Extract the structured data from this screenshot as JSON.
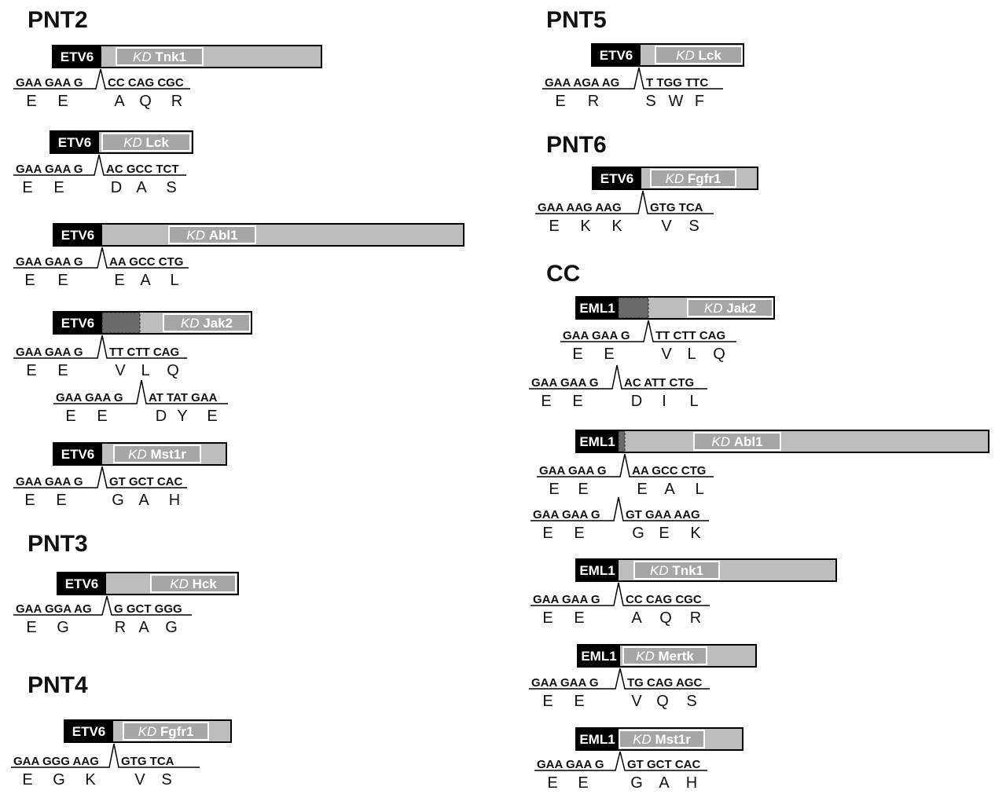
{
  "sections": [
    {
      "title": "PNT2",
      "constructs": [
        {
          "tag": "ETV6",
          "kd": "Tnk1",
          "rows": [
            {
              "left": "GAA GAA G",
              "right": "CC CAG CGC",
              "left_aa": [
                "E",
                "E"
              ],
              "right_aa": [
                "A",
                "Q",
                "R"
              ]
            }
          ]
        },
        {
          "tag": "ETV6",
          "kd": "Lck",
          "rows": [
            {
              "left": "GAA GAA G",
              "right": "AC GCC TCT",
              "left_aa": [
                "E",
                "E"
              ],
              "right_aa": [
                "D",
                "A",
                "S"
              ]
            }
          ]
        },
        {
          "tag": "ETV6",
          "kd": "Abl1",
          "rows": [
            {
              "left": "GAA GAA G",
              "right": "AA GCC CTG",
              "left_aa": [
                "E",
                "E"
              ],
              "right_aa": [
                "E",
                "A",
                "L"
              ]
            }
          ]
        },
        {
          "tag": "ETV6",
          "kd": "Jak2",
          "rows": [
            {
              "left": "GAA GAA G",
              "right": "TT CTT CAG",
              "left_aa": [
                "E",
                "E"
              ],
              "right_aa": [
                "V",
                "L",
                "Q"
              ]
            },
            {
              "left": "GAA GAA G",
              "right": "AT TAT GAA",
              "left_aa": [
                "E",
                "E"
              ],
              "right_aa": [
                "D",
                "Y",
                "E"
              ]
            }
          ]
        },
        {
          "tag": "ETV6",
          "kd": "Mst1r",
          "rows": [
            {
              "left": "GAA GAA G",
              "right": "GT GCT CAC",
              "left_aa": [
                "E",
                "E"
              ],
              "right_aa": [
                "G",
                "A",
                "H"
              ]
            }
          ]
        }
      ]
    },
    {
      "title": "PNT3",
      "constructs": [
        {
          "tag": "ETV6",
          "kd": "Hck",
          "rows": [
            {
              "left": "GAA GGA AG",
              "right": "G GCT GGG",
              "left_aa": [
                "E",
                "G"
              ],
              "right_aa": [
                "R",
                "A",
                "G"
              ]
            }
          ]
        }
      ]
    },
    {
      "title": "PNT4",
      "constructs": [
        {
          "tag": "ETV6",
          "kd": "Fgfr1",
          "rows": [
            {
              "left": "GAA GGG AAG",
              "right": "GTG TCA",
              "left_aa": [
                "E",
                "G",
                "K"
              ],
              "right_aa": [
                "V",
                "S"
              ]
            }
          ]
        }
      ]
    },
    {
      "title": "PNT5",
      "constructs": [
        {
          "tag": "ETV6",
          "kd": "Lck",
          "rows": [
            {
              "left": "GAA AGA AG",
              "right": "T TGG TTC",
              "left_aa": [
                "E",
                "R"
              ],
              "right_aa": [
                "S",
                "W",
                "F"
              ]
            }
          ]
        }
      ]
    },
    {
      "title": "PNT6",
      "constructs": [
        {
          "tag": "ETV6",
          "kd": "Fgfr1",
          "rows": [
            {
              "left": "GAA AAG AAG",
              "right": "GTG TCA",
              "left_aa": [
                "E",
                "K",
                "K"
              ],
              "right_aa": [
                "V",
                "S"
              ]
            }
          ]
        }
      ]
    },
    {
      "title": "CC",
      "constructs": [
        {
          "tag": "EML1",
          "kd": "Jak2",
          "rows": [
            {
              "left": "GAA GAA G",
              "right": "TT CTT CAG",
              "left_aa": [
                "E",
                "E"
              ],
              "right_aa": [
                "V",
                "L",
                "Q"
              ]
            },
            {
              "left": "GAA GAA G",
              "right": "AC ATT CTG",
              "left_aa": [
                "E",
                "E"
              ],
              "right_aa": [
                "D",
                "I",
                "L"
              ]
            }
          ]
        },
        {
          "tag": "EML1",
          "kd": "Abl1",
          "rows": [
            {
              "left": "GAA GAA G",
              "right": "AA GCC CTG",
              "left_aa": [
                "E",
                "E"
              ],
              "right_aa": [
                "E",
                "A",
                "L"
              ]
            },
            {
              "left": "GAA GAA G",
              "right": "GT GAA AAG",
              "left_aa": [
                "E",
                "E"
              ],
              "right_aa": [
                "G",
                "E",
                "K"
              ]
            }
          ]
        },
        {
          "tag": "EML1",
          "kd": "Tnk1",
          "rows": [
            {
              "left": "GAA GAA G",
              "right": "CC CAG CGC",
              "left_aa": [
                "E",
                "E"
              ],
              "right_aa": [
                "A",
                "Q",
                "R"
              ]
            }
          ]
        },
        {
          "tag": "EML1",
          "kd": "Mertk",
          "rows": [
            {
              "left": "GAA GAA G",
              "right": "TG CAG AGC",
              "left_aa": [
                "E",
                "E"
              ],
              "right_aa": [
                "V",
                "Q",
                "S"
              ]
            }
          ]
        },
        {
          "tag": "EML1",
          "kd": "Mst1r",
          "rows": [
            {
              "left": "GAA GAA G",
              "right": "GT GCT CAC",
              "left_aa": [
                "E",
                "E"
              ],
              "right_aa": [
                "G",
                "A",
                "H"
              ]
            }
          ]
        }
      ]
    }
  ],
  "kd_prefix": "KD",
  "colors": {
    "tag": "#000000",
    "bar": "#bdbdbd",
    "kd_box": "#a6a6a6",
    "dark": "#6a6a6a",
    "text": "#111111"
  }
}
